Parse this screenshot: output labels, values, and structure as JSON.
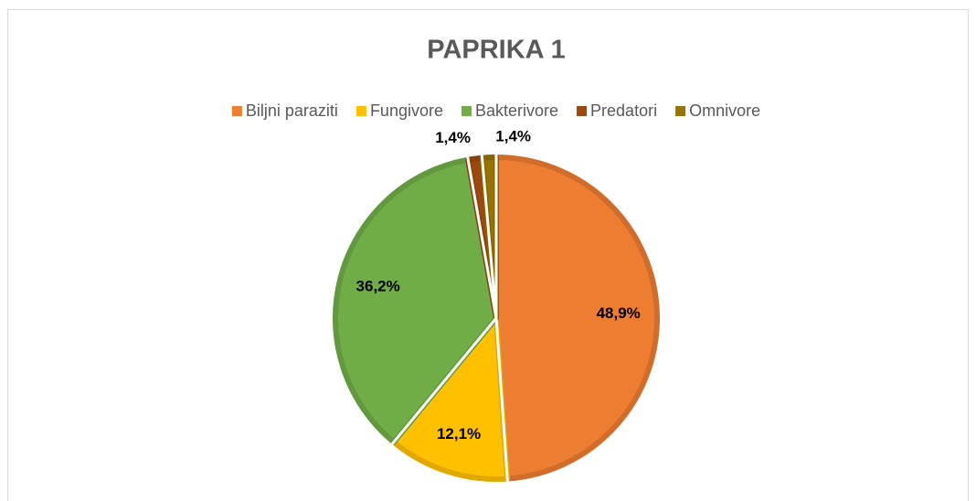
{
  "chart_data": {
    "type": "pie",
    "title": "PAPRIKA 1",
    "categories": [
      "Biljni paraziti",
      "Fungivore",
      "Bakterivore",
      "Predatori",
      "Omnivore"
    ],
    "values": [
      48.9,
      12.1,
      36.2,
      1.4,
      1.4
    ],
    "value_labels": [
      "48,9%",
      "12,1%",
      "36,2%",
      "1,4%",
      "1,4%"
    ],
    "colors": [
      "#ED7D31",
      "#FFC000",
      "#70AD47",
      "#9E480E",
      "#997300"
    ],
    "legend": "top"
  }
}
